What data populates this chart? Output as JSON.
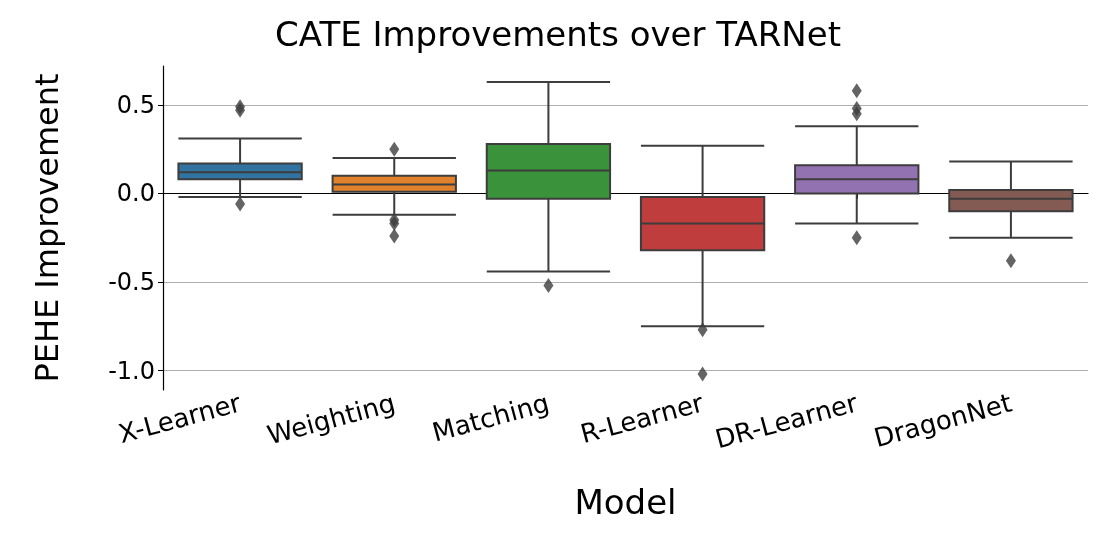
{
  "chart_data": {
    "type": "box",
    "title": "CATE Improvements over TARNet",
    "xlabel": "Model",
    "ylabel": "PEHE Improvement",
    "categories": [
      "X-Learner",
      "Weighting",
      "Matching",
      "R-Learner",
      "DR-Learner",
      "DragonNet"
    ],
    "colors": [
      "#3274a1",
      "#e1812c",
      "#3a923a",
      "#c03d3e",
      "#9372b2",
      "#845b53"
    ],
    "boxes": [
      {
        "low": -0.02,
        "q1": 0.08,
        "median": 0.12,
        "q3": 0.17,
        "high": 0.31,
        "outliers": [
          0.49,
          0.47,
          -0.06
        ]
      },
      {
        "low": -0.12,
        "q1": 0.01,
        "median": 0.05,
        "q3": 0.1,
        "high": 0.2,
        "outliers": [
          0.25,
          -0.15,
          -0.17,
          -0.24
        ]
      },
      {
        "low": -0.44,
        "q1": -0.03,
        "median": 0.13,
        "q3": 0.28,
        "high": 0.63,
        "outliers": [
          -0.52
        ]
      },
      {
        "low": -0.75,
        "q1": -0.32,
        "median": -0.17,
        "q3": -0.02,
        "high": 0.27,
        "outliers": [
          -0.77,
          -1.02
        ]
      },
      {
        "low": -0.17,
        "q1": 0.0,
        "median": 0.08,
        "q3": 0.16,
        "high": 0.38,
        "outliers": [
          0.58,
          0.48,
          0.45,
          -0.25
        ]
      },
      {
        "low": -0.25,
        "q1": -0.1,
        "median": -0.03,
        "q3": 0.02,
        "high": 0.18,
        "outliers": [
          -0.38
        ]
      }
    ],
    "ylim": [
      -1.11,
      0.72
    ],
    "yticks": [
      {
        "value": -1.0,
        "label": "-1.0"
      },
      -0.5,
      {
        "value": 0.0,
        "label": "0.0"
      },
      0.5
    ],
    "grid": "y",
    "marker": "diamond"
  }
}
